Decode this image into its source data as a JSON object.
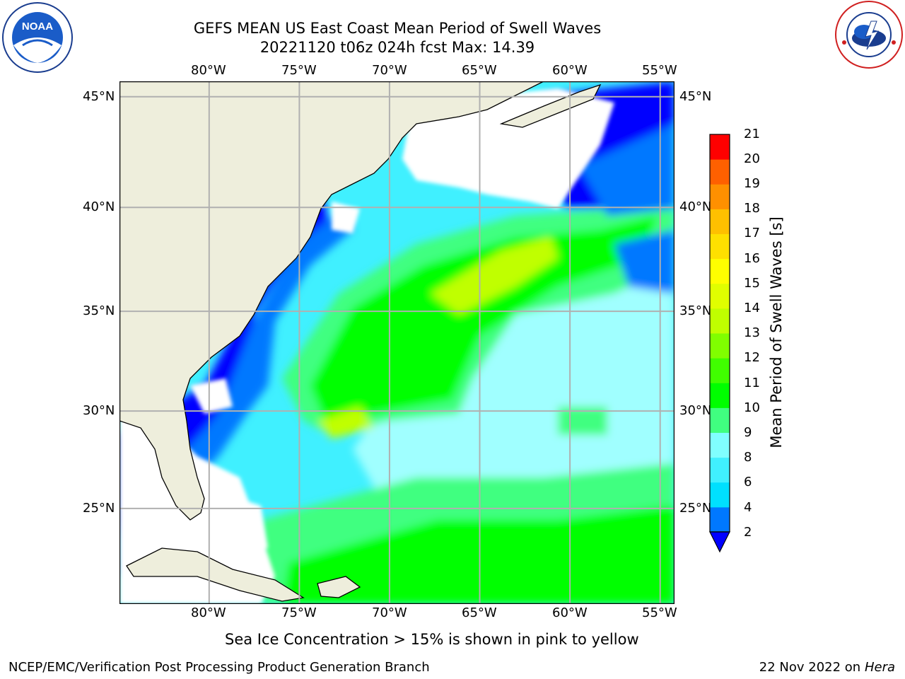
{
  "header": {
    "title_line1": "GEFS MEAN US East Coast Mean Period of Swell Waves",
    "title_line2": "20221120 t06z 024h fcst   Max: 14.39"
  },
  "logos": {
    "left": {
      "name": "noaa-logo",
      "text": "NOAA",
      "ring_text": "NATIONAL OCEANIC AND ATMOSPHERIC ADMINISTRATION · U.S. DEPARTMENT OF COMMERCE"
    },
    "right": {
      "name": "nws-logo",
      "ring_text": "NATIONAL WEATHER SERVICE"
    }
  },
  "map": {
    "lon_labels": [
      "80°W",
      "75°W",
      "70°W",
      "65°W",
      "60°W",
      "55°W"
    ],
    "lat_labels": [
      "45°N",
      "40°N",
      "35°N",
      "30°N",
      "25°N"
    ],
    "lon_values": [
      -80,
      -75,
      -70,
      -65,
      -60,
      -55
    ],
    "lat_values": [
      45,
      40,
      35,
      30,
      25
    ],
    "extent": {
      "lon_min": -85,
      "lon_max": -54.3,
      "lat_min": 20.3,
      "lat_max": 45.8
    },
    "land_color": "#eeeedc",
    "nodata_color": "#ffffff"
  },
  "colorbar": {
    "label": "Mean Period of Swell Waves [s]",
    "ticks": [
      "21",
      "20",
      "19",
      "18",
      "17",
      "16",
      "15",
      "14",
      "13",
      "12",
      "11",
      "10",
      "9",
      "8",
      "6",
      "4",
      "2"
    ],
    "extend_color": "#0000ff",
    "colors": [
      "#0000ff",
      "#0078ff",
      "#00e0ff",
      "#40f0ff",
      "#80ffff",
      "#a0ffff",
      "#40ff80",
      "#00ff00",
      "#40ff00",
      "#80ff00",
      "#c0ff00",
      "#e0ff00",
      "#ffff00",
      "#ffe000",
      "#ffc000",
      "#ff9000",
      "#ff6000",
      "#ff3000",
      "#ff0000"
    ]
  },
  "subtitle": "Sea Ice Concentration > 15% is shown in pink to yellow",
  "footer": {
    "left": "NCEP/EMC/Verification Post Processing Product Generation Branch",
    "date": "22 Nov 2022 on",
    "host": "Hera"
  }
}
